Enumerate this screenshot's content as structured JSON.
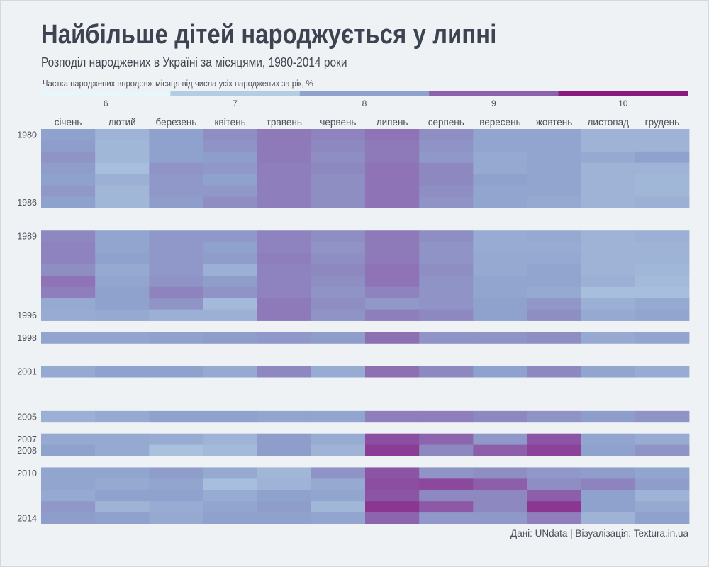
{
  "title": "Найбільше дітей народжується у липні",
  "subtitle": "Розподіл народжених в Україні за місяцями, 1980-2014 роки",
  "legend_title": "Частка народжених впродовж місяця від числа усіх народжених за рік, %",
  "source": "Дані: UNdata | Візуалізація: Textura.in.ua",
  "colors": {
    "background": "#eef2f5",
    "scale": [
      "#e6f7fb",
      "#b5cde4",
      "#8fa2cd",
      "#8d62ad",
      "#8a1a7f"
    ]
  },
  "chart_data": {
    "type": "heatmap",
    "title": "Найбільше дітей народжується у липні",
    "subtitle": "Розподіл народжених в Україні за місяцями, 1980-2014 роки",
    "legend": {
      "title": "Частка народжених впродовж місяця від числа усіх народжених за рік, %",
      "ticks": [
        6,
        7,
        8,
        9,
        10
      ],
      "range": [
        5.5,
        10.5
      ],
      "placement": "top"
    },
    "x_categories": [
      "січень",
      "лютий",
      "березень",
      "квітень",
      "травень",
      "червень",
      "липень",
      "серпень",
      "вересень",
      "жовтень",
      "листопад",
      "грудень"
    ],
    "y_categories": [
      1980,
      1981,
      1982,
      1983,
      1984,
      1985,
      1986,
      1989,
      1990,
      1991,
      1992,
      1993,
      1994,
      1995,
      1996,
      1998,
      2001,
      2005,
      2007,
      2008,
      2010,
      2011,
      2012,
      2013,
      2014
    ],
    "y_tick_labels": [
      "1980",
      "1986",
      "1989",
      "1996",
      "1998",
      "2001",
      "2005",
      "2007",
      "2008",
      "2010",
      "2014"
    ],
    "values": [
      [
        8.0,
        7.5,
        8.0,
        8.4,
        8.8,
        8.6,
        8.9,
        8.4,
        7.9,
        7.9,
        7.5,
        7.5
      ],
      [
        8.1,
        7.4,
        8.0,
        8.3,
        8.8,
        8.5,
        8.8,
        8.3,
        7.9,
        7.9,
        7.5,
        7.5
      ],
      [
        8.3,
        7.4,
        8.0,
        8.1,
        8.8,
        8.4,
        8.8,
        8.2,
        7.8,
        7.9,
        7.8,
        8.0
      ],
      [
        8.1,
        7.2,
        8.3,
        8.2,
        8.7,
        8.5,
        8.9,
        8.5,
        7.8,
        7.9,
        7.5,
        7.5
      ],
      [
        8.0,
        7.6,
        8.2,
        8.0,
        8.7,
        8.4,
        8.9,
        8.5,
        8.0,
        7.9,
        7.5,
        7.4
      ],
      [
        8.2,
        7.4,
        8.2,
        8.2,
        8.7,
        8.4,
        8.9,
        8.4,
        7.9,
        7.9,
        7.5,
        7.4
      ],
      [
        8.0,
        7.4,
        8.1,
        8.4,
        8.7,
        8.4,
        8.9,
        8.3,
        7.9,
        7.8,
        7.5,
        7.6
      ],
      [
        8.5,
        7.9,
        8.2,
        8.2,
        8.6,
        8.4,
        8.8,
        8.4,
        7.7,
        7.8,
        7.5,
        7.6
      ],
      [
        8.6,
        7.9,
        8.2,
        8.0,
        8.6,
        8.3,
        8.8,
        8.3,
        7.7,
        7.7,
        7.5,
        7.5
      ],
      [
        8.6,
        8.0,
        8.2,
        8.1,
        8.7,
        8.4,
        8.8,
        8.3,
        7.8,
        7.8,
        7.5,
        7.5
      ],
      [
        8.4,
        7.8,
        8.2,
        7.6,
        8.6,
        8.5,
        8.9,
        8.4,
        7.8,
        7.9,
        7.5,
        7.4
      ],
      [
        8.9,
        7.9,
        8.3,
        8.1,
        8.6,
        8.4,
        8.9,
        8.3,
        7.9,
        7.9,
        7.6,
        7.3
      ],
      [
        8.7,
        8.0,
        8.6,
        8.3,
        8.6,
        8.3,
        8.6,
        8.3,
        7.9,
        7.8,
        7.2,
        7.2
      ],
      [
        7.8,
        8.0,
        8.3,
        7.3,
        8.8,
        8.4,
        8.2,
        8.3,
        8.0,
        8.2,
        7.6,
        7.8
      ],
      [
        7.7,
        7.8,
        7.6,
        7.6,
        8.8,
        8.3,
        8.7,
        8.5,
        8.0,
        8.4,
        7.8,
        7.9
      ],
      [
        7.9,
        7.9,
        8.0,
        8.1,
        8.2,
        8.1,
        9.0,
        8.3,
        8.3,
        8.4,
        7.8,
        7.9
      ],
      [
        7.8,
        8.0,
        8.0,
        7.8,
        8.5,
        7.7,
        9.0,
        8.5,
        8.0,
        8.5,
        7.9,
        7.7
      ],
      [
        7.6,
        7.8,
        8.0,
        8.0,
        7.9,
        7.9,
        8.7,
        8.7,
        8.5,
        8.3,
        8.1,
        8.3
      ],
      [
        7.8,
        7.8,
        7.7,
        7.5,
        8.1,
        7.7,
        9.6,
        9.2,
        8.2,
        9.5,
        7.9,
        7.7
      ],
      [
        8.0,
        7.8,
        7.1,
        7.3,
        8.1,
        7.5,
        9.9,
        8.5,
        9.3,
        9.8,
        8.0,
        8.3
      ],
      [
        7.9,
        7.9,
        8.1,
        7.8,
        7.4,
        8.3,
        9.5,
        8.3,
        8.4,
        8.2,
        8.1,
        7.9
      ],
      [
        7.9,
        7.8,
        7.9,
        7.2,
        7.5,
        7.8,
        9.6,
        9.7,
        9.3,
        8.4,
        8.6,
        8.1
      ],
      [
        7.8,
        8.0,
        8.0,
        7.7,
        8.0,
        7.9,
        9.5,
        8.5,
        8.5,
        9.3,
        8.0,
        7.5
      ],
      [
        8.2,
        7.5,
        7.7,
        7.9,
        8.1,
        7.4,
        10.0,
        9.4,
        8.5,
        10.0,
        8.0,
        7.8
      ],
      [
        8.1,
        8.0,
        7.8,
        8.0,
        8.0,
        7.9,
        9.2,
        8.2,
        8.2,
        8.7,
        7.5,
        8.0
      ]
    ],
    "grid": false
  }
}
